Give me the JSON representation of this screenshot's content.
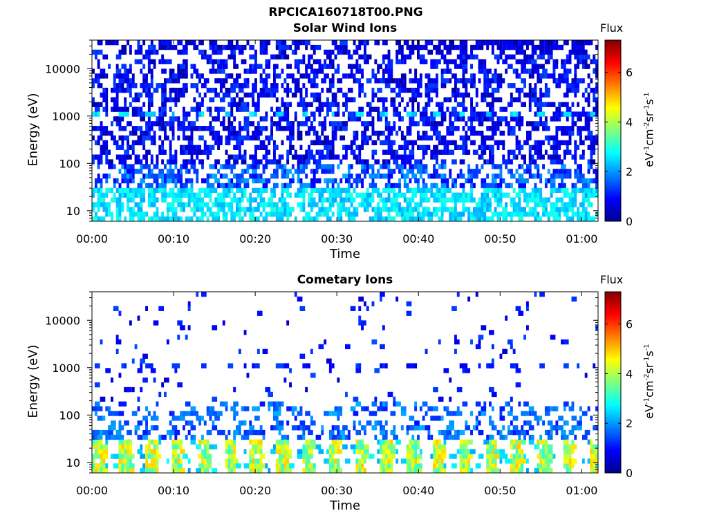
{
  "figure_title": "RPCICA160718T00.PNG",
  "colors": {
    "axis": "#000000",
    "background": "#ffffff"
  },
  "chart_data": [
    {
      "type": "heatmap",
      "title": "Solar Wind Ions",
      "xlabel": "Time",
      "ylabel": "Energy (eV)",
      "y_scale": "log",
      "ylim": [
        6,
        40000
      ],
      "xlim": [
        "00:00",
        "01:02"
      ],
      "x_ticks": [
        "00:00",
        "00:10",
        "00:20",
        "00:30",
        "00:40",
        "00:50",
        "01:00"
      ],
      "y_ticks": [
        "10",
        "100",
        "1000",
        "10000"
      ],
      "colorbar": {
        "title": "Flux",
        "label": "eV-1cm-2sr-1s-1",
        "range": [
          0,
          7.3
        ],
        "ticks": [
          "0",
          "2",
          "4",
          "6"
        ],
        "colormap": "jet"
      },
      "description_bands": [
        {
          "energy_range": [
            6,
            30
          ],
          "flux_range": [
            2,
            3
          ],
          "note": "dense cyan patches at low energy"
        },
        {
          "energy_range": [
            30,
            40000
          ],
          "flux_range": [
            0.3,
            1.5
          ],
          "note": "sparse dark-blue streaks"
        },
        {
          "energy_range": [
            1000,
            1300
          ],
          "flux_range": [
            2,
            2.8
          ],
          "note": "periodic cyan band near 1 keV"
        },
        {
          "energy_range": [
            20000,
            40000
          ],
          "time_range": [
            "00:40",
            "01:02"
          ],
          "flux_range": [
            0.3,
            1
          ],
          "note": "denser blue at top after 00:40"
        }
      ]
    },
    {
      "type": "heatmap",
      "title": "Cometary Ions",
      "xlabel": "Time",
      "ylabel": "Energy (eV)",
      "y_scale": "log",
      "ylim": [
        6,
        40000
      ],
      "xlim": [
        "00:00",
        "01:02"
      ],
      "x_ticks": [
        "00:00",
        "00:10",
        "00:20",
        "00:30",
        "00:40",
        "00:50",
        "01:00"
      ],
      "y_ticks": [
        "10",
        "100",
        "1000",
        "10000"
      ],
      "colorbar": {
        "title": "Flux",
        "label": "eV-1cm-2sr-1s-1",
        "range": [
          0,
          7.3
        ],
        "ticks": [
          "0",
          "2",
          "4",
          "6"
        ],
        "colormap": "jet"
      },
      "description_bands": [
        {
          "energy_range": [
            6,
            28
          ],
          "flux_range": [
            3,
            5
          ],
          "note": "periodic yellow-green columns every ~3.2 min"
        },
        {
          "energy_range": [
            28,
            200
          ],
          "flux_range": [
            1,
            2.2
          ],
          "note": "scattered blue streaks"
        },
        {
          "energy_range": [
            1000,
            1300
          ],
          "flux_range": [
            0.8,
            1.5
          ],
          "note": "periodic dark-blue band near 1 keV"
        },
        {
          "energy_range": [
            200,
            40000
          ],
          "flux_range": [
            0.5,
            1.5
          ],
          "note": "very sparse blue streaks"
        }
      ]
    }
  ]
}
